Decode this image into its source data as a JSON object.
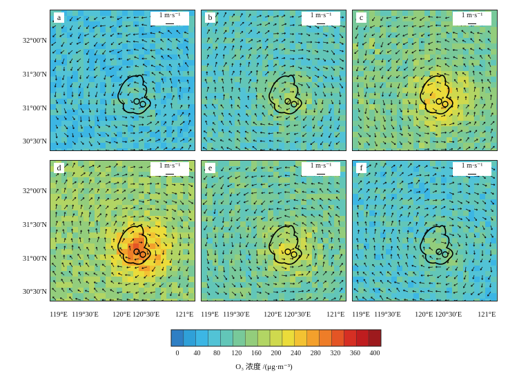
{
  "panels": [
    {
      "label": "a",
      "scale": "1 m·s⁻¹",
      "level": 0.15
    },
    {
      "label": "b",
      "scale": "1 m·s⁻¹",
      "level": 0.3
    },
    {
      "label": "c",
      "scale": "1 m·s⁻¹",
      "level": 0.55
    },
    {
      "label": "d",
      "scale": "1 m·s⁻¹",
      "level": 0.7
    },
    {
      "label": "e",
      "scale": "1 m·s⁻¹",
      "level": 0.45
    },
    {
      "label": "f",
      "scale": "1 m·s⁻¹",
      "level": 0.25
    }
  ],
  "lat_labels": [
    "32°00′N",
    "31°30′N",
    "31°00′N",
    "30°30′N"
  ],
  "lon_labels": [
    "119°E",
    "119°30′E",
    "120°E",
    "120°30′E",
    "121°E"
  ],
  "colorbar": {
    "ticks": [
      "0",
      "40",
      "80",
      "120",
      "160",
      "200",
      "240",
      "280",
      "320",
      "360",
      "400"
    ],
    "title": "O₃ 浓度 /(μg·m⁻³)",
    "colors": [
      "#2f7fc4",
      "#2fa0d8",
      "#3cb6e4",
      "#52c3d6",
      "#62c6b8",
      "#78c99a",
      "#93cd7c",
      "#b2d564",
      "#cfd94e",
      "#ebdc3a",
      "#f3c232",
      "#f3a02c",
      "#ee7d28",
      "#e45525",
      "#d62f23",
      "#bf1d1f",
      "#9d1a1d"
    ]
  }
}
